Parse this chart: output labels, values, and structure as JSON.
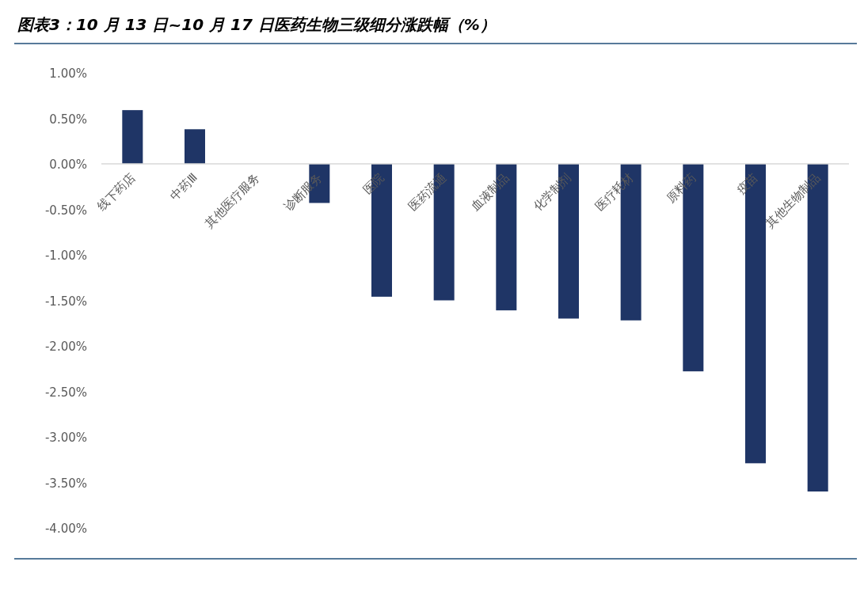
{
  "chart_data": {
    "type": "bar",
    "title": "图表3：10 月 13 日~10 月 17 日医药生物三级细分涨跌幅（%）",
    "categories": [
      "线下药店",
      "中药Ⅲ",
      "其他医疗服务",
      "诊断服务",
      "医院",
      "医药流通",
      "血液制品",
      "化学制剂",
      "医疗耗材",
      "原料药",
      "疫苗",
      "其他生物制品"
    ],
    "values": [
      0.59,
      0.38,
      0,
      -0.43,
      -1.46,
      -1.5,
      -1.61,
      -1.7,
      -1.72,
      -2.28,
      -3.29,
      -3.6
    ],
    "color": "#1f3566",
    "ylim": [
      -4,
      1
    ],
    "yticks": [
      {
        "value": 1,
        "label": "1.00%"
      },
      {
        "value": 0.5,
        "label": "0.50%"
      },
      {
        "value": 0,
        "label": "0.00%"
      },
      {
        "value": -0.5,
        "label": "-0.50%"
      },
      {
        "value": -1,
        "label": "-1.00%"
      },
      {
        "value": -1.5,
        "label": "-1.50%"
      },
      {
        "value": -2,
        "label": "-2.00%"
      },
      {
        "value": -2.5,
        "label": "-2.50%"
      },
      {
        "value": -3,
        "label": "-3.00%"
      },
      {
        "value": -3.5,
        "label": "-3.50%"
      },
      {
        "value": -4,
        "label": "-4.00%"
      }
    ],
    "grid": false
  }
}
